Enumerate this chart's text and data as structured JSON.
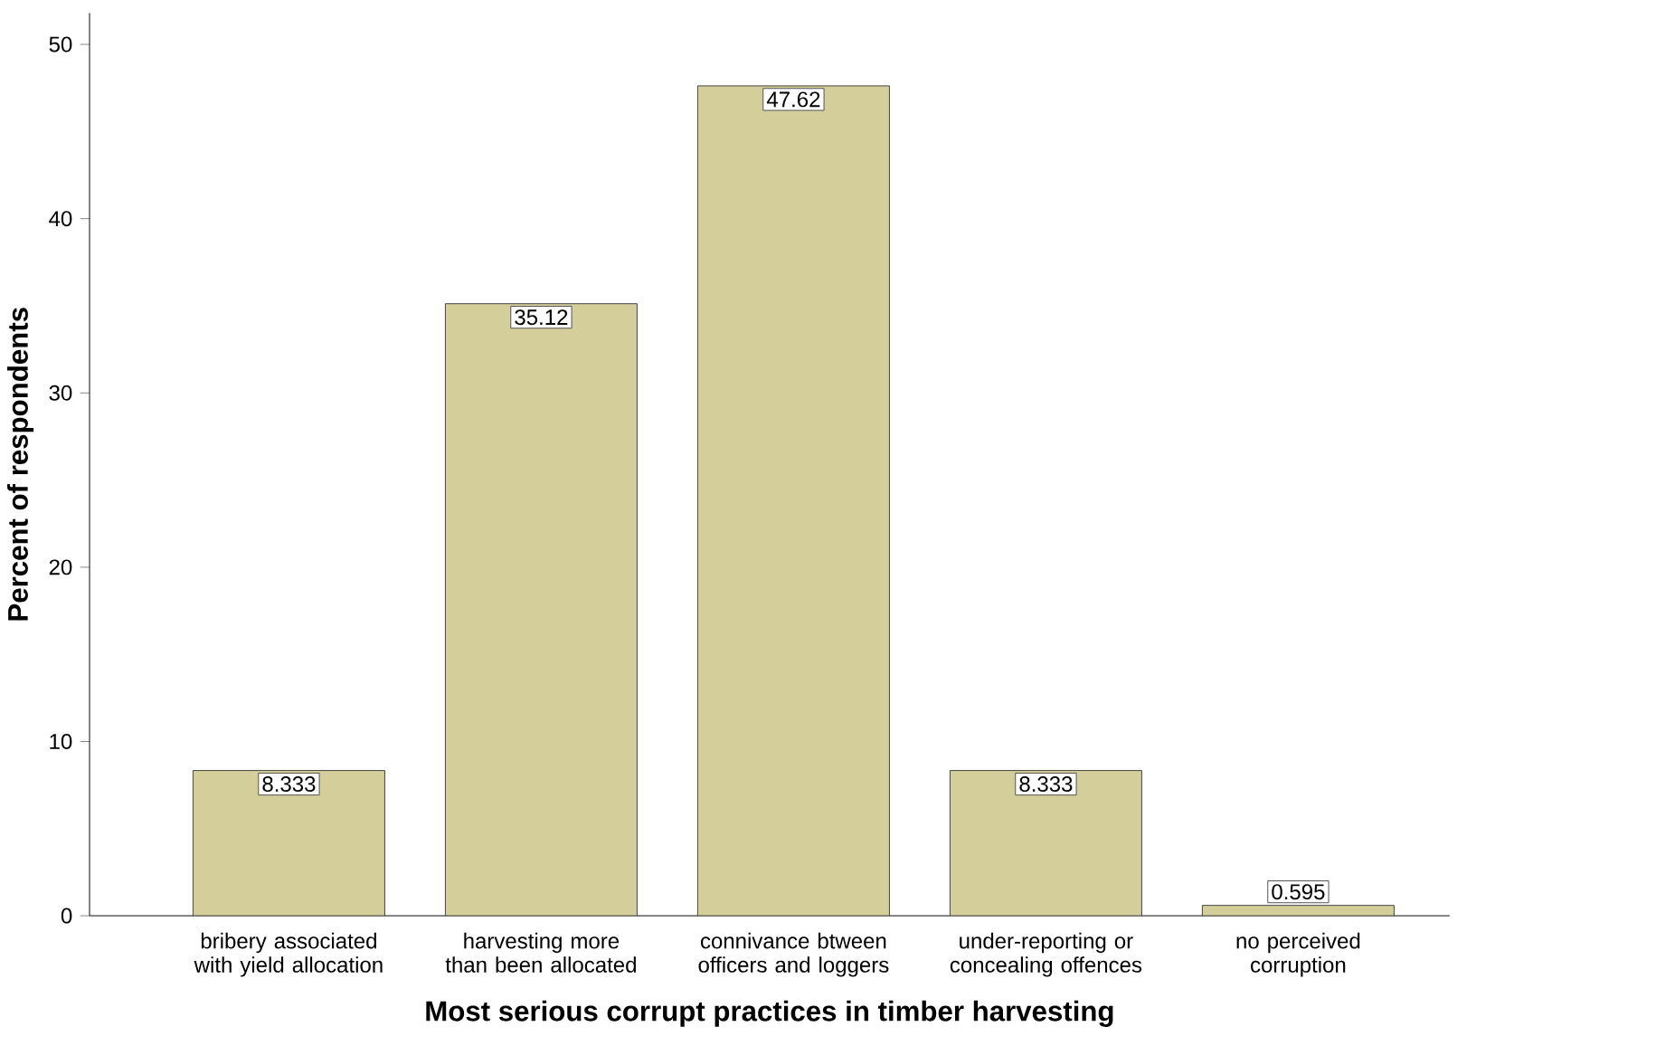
{
  "chart_data": {
    "type": "bar",
    "xlabel": "Most serious corrupt practices in timber harvesting",
    "ylabel": "Percent of respondents",
    "categories": [
      "bribery associated with yield allocation",
      "harvesting more than been allocated",
      "connivance btween officers and loggers",
      "under-reporting or concealing offences",
      "no perceived corruption"
    ],
    "values": [
      8.333,
      35.12,
      47.62,
      8.333,
      0.595
    ],
    "color": "#d3ce9a",
    "ylim": [
      0,
      51.8
    ],
    "yticks": [
      0,
      10,
      20,
      30,
      40,
      50
    ],
    "data_labels": true
  }
}
